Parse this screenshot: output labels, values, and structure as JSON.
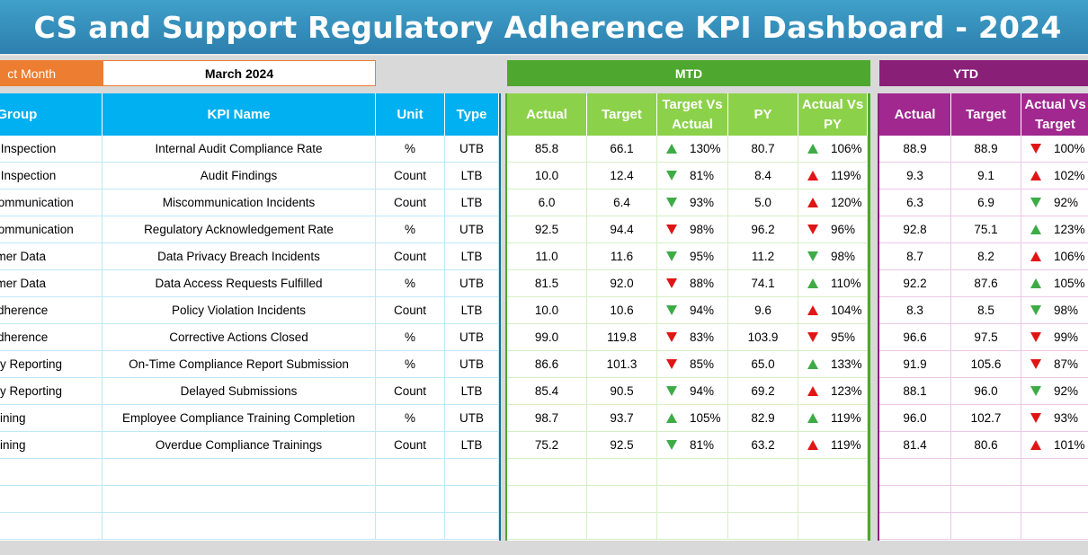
{
  "title": "CS and Support Regulatory Adherence KPI Dashboard - 2024",
  "selector": {
    "label": "ct Month",
    "value": "March 2024"
  },
  "sections": {
    "mtd": "MTD",
    "ytd": "YTD"
  },
  "headers": {
    "left": [
      "l Group",
      "KPI Name",
      "Unit",
      "Type"
    ],
    "mtd": [
      "Actual",
      "Target",
      "Target Vs Actual",
      "PY",
      "Actual Vs PY"
    ],
    "ytd": [
      "Actual",
      "Target",
      "Actual Vs Target"
    ]
  },
  "colors": {
    "up_good": "#3eab47",
    "down_bad": "#e01515",
    "mtd": "#4ea72e",
    "ytd": "#8a1f78",
    "left": "#00b0f0"
  },
  "rows": [
    {
      "group": "& Inspection",
      "kpi": "Internal Audit Compliance Rate",
      "unit": "%",
      "type": "UTB",
      "m_actual": "85.8",
      "m_target": "66.1",
      "m_tva": "130%",
      "m_tva_icon": "up-green",
      "m_py": "80.7",
      "m_avp": "106%",
      "m_avp_icon": "up-green",
      "y_actual": "88.9",
      "y_target": "88.9",
      "y_avt": "100%",
      "y_avt_icon": "down-red"
    },
    {
      "group": "& Inspection",
      "kpi": "Audit Findings",
      "unit": "Count",
      "type": "LTB",
      "m_actual": "10.0",
      "m_target": "12.4",
      "m_tva": "81%",
      "m_tva_icon": "down-green",
      "m_py": "8.4",
      "m_avp": "119%",
      "m_avp_icon": "up-red",
      "y_actual": "9.3",
      "y_target": "9.1",
      "y_avt": "102%",
      "y_avt_icon": "up-red"
    },
    {
      "group": "Communication",
      "kpi": "Miscommunication Incidents",
      "unit": "Count",
      "type": "LTB",
      "m_actual": "6.0",
      "m_target": "6.4",
      "m_tva": "93%",
      "m_tva_icon": "down-green",
      "m_py": "5.0",
      "m_avp": "120%",
      "m_avp_icon": "up-red",
      "y_actual": "6.3",
      "y_target": "6.9",
      "y_avt": "92%",
      "y_avt_icon": "down-green"
    },
    {
      "group": "Communication",
      "kpi": "Regulatory Acknowledgement Rate",
      "unit": "%",
      "type": "UTB",
      "m_actual": "92.5",
      "m_target": "94.4",
      "m_tva": "98%",
      "m_tva_icon": "down-red",
      "m_py": "96.2",
      "m_avp": "96%",
      "m_avp_icon": "down-red",
      "y_actual": "92.8",
      "y_target": "75.1",
      "y_avt": "123%",
      "y_avt_icon": "up-green"
    },
    {
      "group": "omer Data",
      "kpi": "Data Privacy Breach Incidents",
      "unit": "Count",
      "type": "LTB",
      "m_actual": "11.0",
      "m_target": "11.6",
      "m_tva": "95%",
      "m_tva_icon": "down-green",
      "m_py": "11.2",
      "m_avp": "98%",
      "m_avp_icon": "down-green",
      "y_actual": "8.7",
      "y_target": "8.2",
      "y_avt": "106%",
      "y_avt_icon": "up-red"
    },
    {
      "group": "omer Data",
      "kpi": "Data Access Requests Fulfilled",
      "unit": "%",
      "type": "UTB",
      "m_actual": "81.5",
      "m_target": "92.0",
      "m_tva": "88%",
      "m_tva_icon": "down-red",
      "m_py": "74.1",
      "m_avp": "110%",
      "m_avp_icon": "up-green",
      "y_actual": "92.2",
      "y_target": "87.6",
      "y_avt": "105%",
      "y_avt_icon": "up-green"
    },
    {
      "group": "Adherence",
      "kpi": "Policy Violation Incidents",
      "unit": "Count",
      "type": "LTB",
      "m_actual": "10.0",
      "m_target": "10.6",
      "m_tva": "94%",
      "m_tva_icon": "down-green",
      "m_py": "9.6",
      "m_avp": "104%",
      "m_avp_icon": "up-red",
      "y_actual": "8.3",
      "y_target": "8.5",
      "y_avt": "98%",
      "y_avt_icon": "down-green"
    },
    {
      "group": "Adherence",
      "kpi": "Corrective Actions Closed",
      "unit": "%",
      "type": "UTB",
      "m_actual": "99.0",
      "m_target": "119.8",
      "m_tva": "83%",
      "m_tva_icon": "down-red",
      "m_py": "103.9",
      "m_avp": "95%",
      "m_avp_icon": "down-red",
      "y_actual": "96.6",
      "y_target": "97.5",
      "y_avt": "99%",
      "y_avt_icon": "down-red"
    },
    {
      "group": "ory Reporting",
      "kpi": "On-Time Compliance Report Submission",
      "unit": "%",
      "type": "UTB",
      "m_actual": "86.6",
      "m_target": "101.3",
      "m_tva": "85%",
      "m_tva_icon": "down-red",
      "m_py": "65.0",
      "m_avp": "133%",
      "m_avp_icon": "up-green",
      "y_actual": "91.9",
      "y_target": "105.6",
      "y_avt": "87%",
      "y_avt_icon": "down-red"
    },
    {
      "group": "ory Reporting",
      "kpi": "Delayed Submissions",
      "unit": "Count",
      "type": "LTB",
      "m_actual": "85.4",
      "m_target": "90.5",
      "m_tva": "94%",
      "m_tva_icon": "down-green",
      "m_py": "69.2",
      "m_avp": "123%",
      "m_avp_icon": "up-red",
      "y_actual": "88.1",
      "y_target": "96.0",
      "y_avt": "92%",
      "y_avt_icon": "down-green"
    },
    {
      "group": "raining",
      "kpi": "Employee Compliance Training Completion",
      "unit": "%",
      "type": "UTB",
      "m_actual": "98.7",
      "m_target": "93.7",
      "m_tva": "105%",
      "m_tva_icon": "up-green",
      "m_py": "82.9",
      "m_avp": "119%",
      "m_avp_icon": "up-green",
      "y_actual": "96.0",
      "y_target": "102.7",
      "y_avt": "93%",
      "y_avt_icon": "down-red"
    },
    {
      "group": "raining",
      "kpi": "Overdue Compliance Trainings",
      "unit": "Count",
      "type": "LTB",
      "m_actual": "75.2",
      "m_target": "92.5",
      "m_tva": "81%",
      "m_tva_icon": "down-green",
      "m_py": "63.2",
      "m_avp": "119%",
      "m_avp_icon": "up-red",
      "y_actual": "81.4",
      "y_target": "80.6",
      "y_avt": "101%",
      "y_avt_icon": "up-red"
    }
  ]
}
